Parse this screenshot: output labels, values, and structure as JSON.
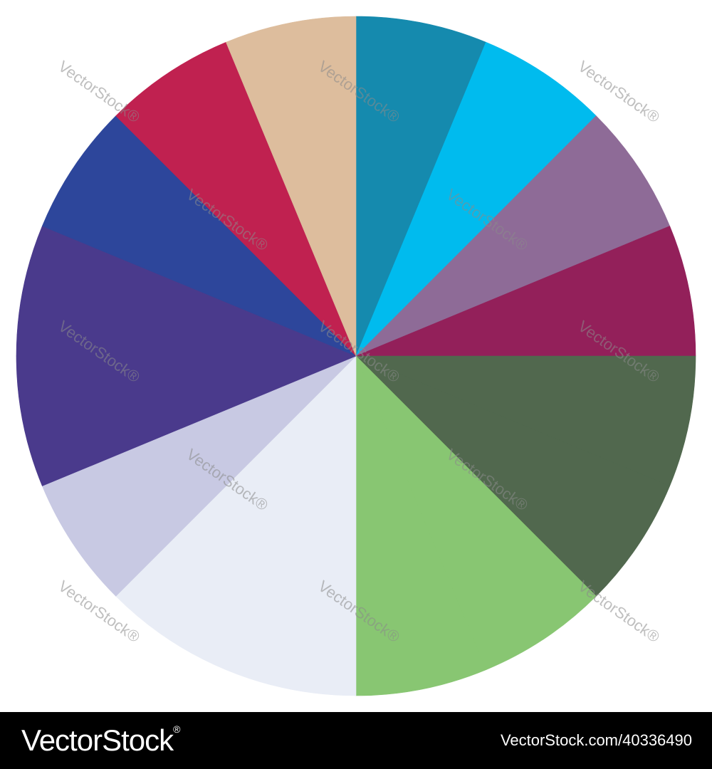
{
  "chart_data": {
    "type": "pie",
    "values": [
      1,
      1,
      1,
      1,
      1,
      1,
      1,
      1,
      1,
      1,
      1,
      1,
      1,
      1,
      1,
      1
    ],
    "colors": [
      "#158aae",
      "#00bbee",
      "#8e6b97",
      "#93205a",
      "#51684e",
      "#51684e",
      "#88c672",
      "#88c672",
      "#e9edf6",
      "#e9edf6",
      "#c8c9e3",
      "#4a3a8c",
      "#4a3a8c",
      "#2d469b",
      "#c02150",
      "#ddbd9d"
    ],
    "title": "",
    "legend": "none"
  },
  "watermark": {
    "text": "VectorStock",
    "mark": "®"
  },
  "footer": {
    "logo_text": "VectorStock",
    "logo_mark": "®",
    "image_id": "VectorStock.com/40336490",
    "background": "#000000"
  }
}
